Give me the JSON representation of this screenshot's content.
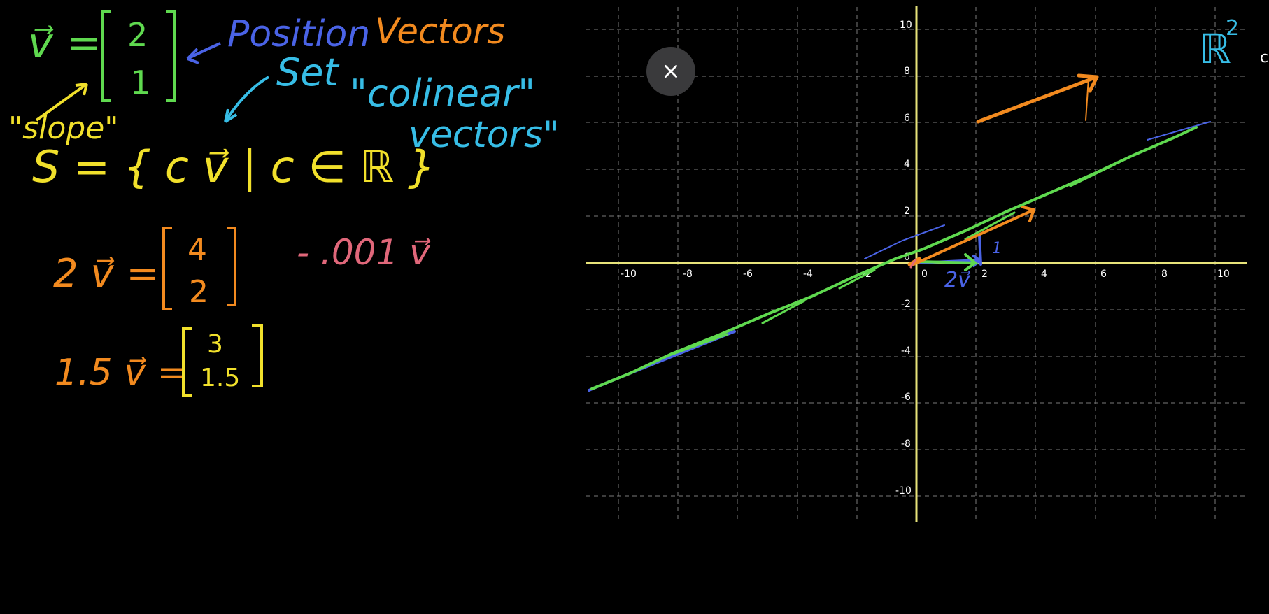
{
  "colors": {
    "background": "#000000",
    "axis": "#e7e37a",
    "grid": "#7a7a7a",
    "green": "#5fd94f",
    "blue": "#4a63e6",
    "orange": "#f28a1f",
    "cyan": "#37bde6",
    "yellow": "#f1e02b",
    "pink": "#e0677a"
  },
  "close_icon": "close-icon",
  "notes": {
    "v_def": {
      "lhs": "v⃗ =",
      "top": "2",
      "bottom": "1"
    },
    "position_vectors": {
      "word1": "Position",
      "word2": "Vectors"
    },
    "slope": "\"slope\"",
    "set_label": "Set",
    "collinear": {
      "line1": "\"colinear\"",
      "line2": "vectors\""
    },
    "set_def": "S = { c v⃗ | c ∈ ℝ }",
    "two_v": {
      "lhs": "2 v⃗ =",
      "top": "4",
      "bottom": "2"
    },
    "small_v": "- .001 v⃗",
    "one_five_v": {
      "lhs": "1.5 v⃗ =",
      "top": "3",
      "bottom": "1.5"
    }
  },
  "graph": {
    "x_ticks": [
      "-10",
      "-8",
      "-6",
      "-4",
      "-2",
      "0",
      "2",
      "4",
      "6",
      "8",
      "10"
    ],
    "y_ticks": [
      "10",
      "8",
      "6",
      "4",
      "2",
      "0",
      "-2",
      "-4",
      "-6",
      "-8",
      "-10"
    ],
    "r2_label": "ℝ",
    "r2_exp": "2",
    "vec_label": "2v⃗",
    "one_label": "1"
  },
  "edge_letter": "c"
}
